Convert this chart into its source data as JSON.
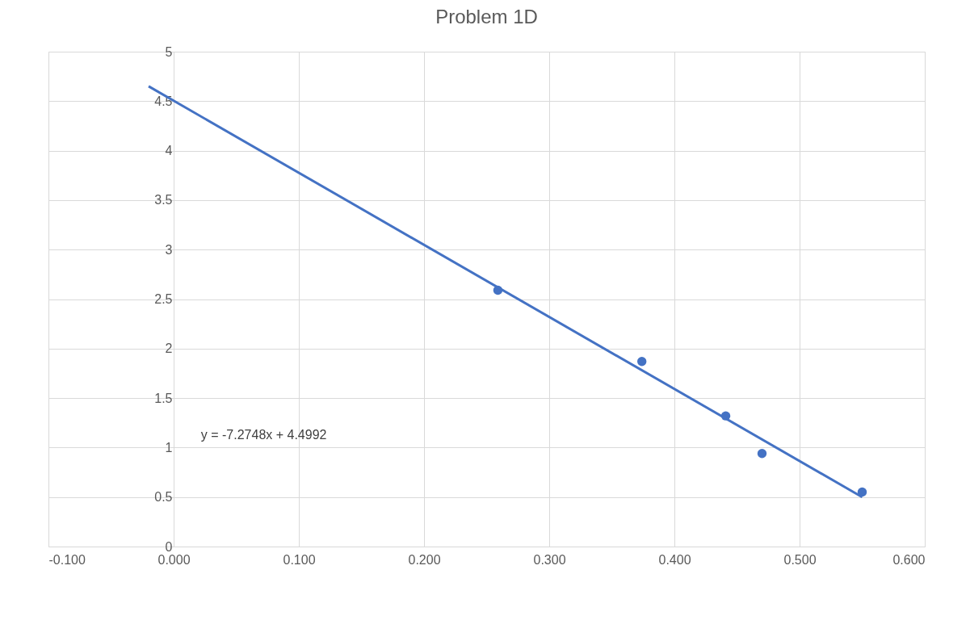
{
  "chart_data": {
    "type": "scatter",
    "title": "Problem 1D",
    "series": [
      {
        "color": "#4472c4",
        "marker": "circle",
        "x": [
          0.259,
          0.374,
          0.441,
          0.47,
          0.55
        ],
        "values": [
          2.59,
          1.87,
          1.32,
          0.94,
          0.55
        ]
      },
      {
        "type": "line",
        "color": "#4472c4",
        "marker": "none",
        "x": [
          -0.02,
          0.55
        ],
        "values": [
          4.65,
          0.5
        ]
      }
    ],
    "annotations": [
      "y = -7.2748x + 4.4992"
    ],
    "xlim": [
      -0.1,
      0.6
    ],
    "xticks": [
      {
        "value": -0.1,
        "label": "-0.100"
      },
      {
        "value": 0,
        "label": "0.000"
      },
      {
        "value": 0.1,
        "label": "0.100"
      },
      {
        "value": 0.2,
        "label": "0.200"
      },
      {
        "value": 0.3,
        "label": "0.300"
      },
      {
        "value": 0.4,
        "label": "0.400"
      },
      {
        "value": 0.5,
        "label": "0.500"
      },
      {
        "value": 0.6,
        "label": "0.600"
      }
    ],
    "ylim": [
      0,
      5
    ],
    "yticks": [
      0,
      0.5,
      1,
      1.5,
      2,
      2.5,
      3,
      3.5,
      4,
      4.5,
      5
    ],
    "grid": true
  }
}
